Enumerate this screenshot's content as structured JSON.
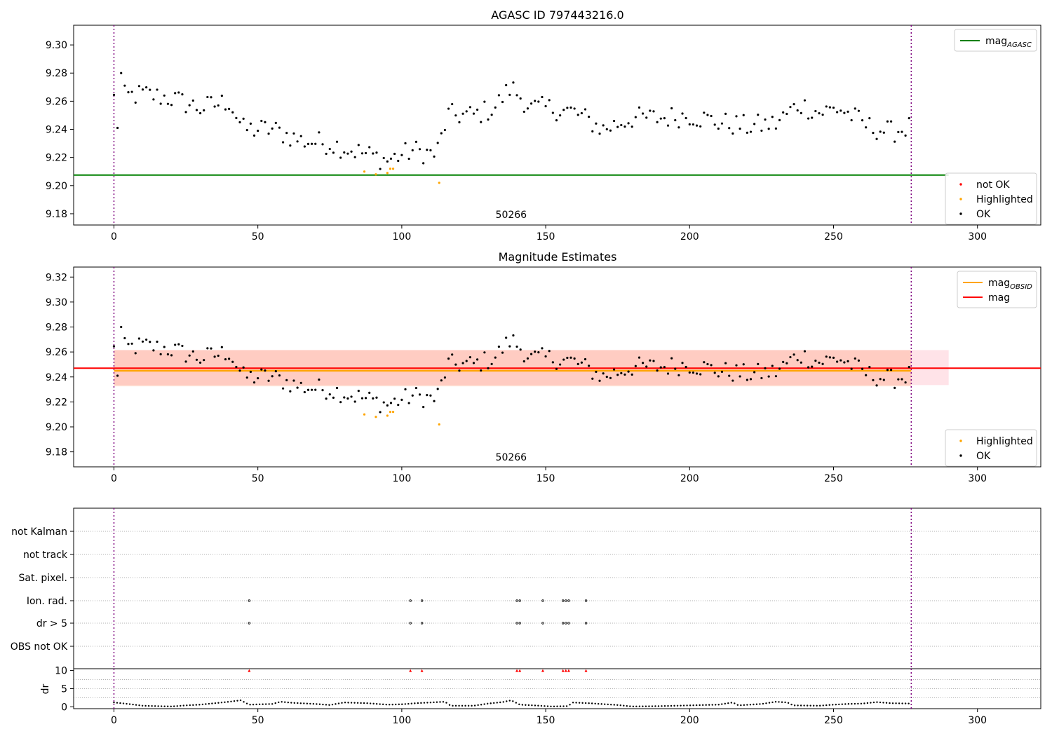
{
  "chart_data": [
    {
      "type": "scatter",
      "title": "AGASC ID 797443216.0",
      "xlim": [
        -14,
        322
      ],
      "ylim": [
        9.172,
        9.314
      ],
      "xticks": [
        0,
        50,
        100,
        150,
        200,
        250,
        300
      ],
      "yticks": [
        9.18,
        9.2,
        9.22,
        9.24,
        9.26,
        9.28,
        9.3
      ],
      "ytick_labels": [
        "9.18",
        "9.20",
        "9.22",
        "9.24",
        "9.26",
        "9.28",
        "9.30"
      ],
      "grid": false,
      "vlines": [
        0,
        277
      ],
      "hline": {
        "name": "mag_AGASC",
        "y": 9.2075,
        "color": "#008000"
      },
      "annotation": {
        "text": "50266",
        "x": 138,
        "y": 9.177
      },
      "legend_top": {
        "placement": "top-right",
        "entries": [
          {
            "label": "mag",
            "sub": "AGASC",
            "color": "#008000",
            "kind": "line"
          }
        ]
      },
      "legend_bottom": {
        "placement": "bottom-right",
        "entries": [
          {
            "label": "not OK",
            "color": "#ff0000",
            "kind": "dot"
          },
          {
            "label": "Highlighted",
            "color": "#ffa500",
            "kind": "dot"
          },
          {
            "label": "OK",
            "color": "#000000",
            "kind": "dot"
          }
        ]
      },
      "series": [
        {
          "name": "not OK",
          "color": "#ff0000",
          "x": [],
          "y": []
        },
        {
          "name": "Highlighted",
          "color": "#ffa500",
          "x": [
            87,
            91,
            95,
            96,
            97,
            113
          ],
          "y": [
            9.21,
            9.208,
            9.209,
            9.212,
            9.212,
            9.202
          ]
        }
      ]
    },
    {
      "type": "scatter",
      "title": "Magnitude Estimates",
      "xlim": [
        -14,
        322
      ],
      "ylim": [
        9.168,
        9.328
      ],
      "xticks": [
        0,
        50,
        100,
        150,
        200,
        250,
        300
      ],
      "yticks": [
        9.18,
        9.2,
        9.22,
        9.24,
        9.26,
        9.28,
        9.3,
        9.32
      ],
      "ytick_labels": [
        "9.18",
        "9.20",
        "9.22",
        "9.24",
        "9.26",
        "9.28",
        "9.30",
        "9.32"
      ],
      "grid": false,
      "vlines": [
        0,
        277
      ],
      "bands": [
        {
          "x": [
            0,
            290
          ],
          "y": [
            9.2335,
            9.2615
          ],
          "color": "#ffc0cb",
          "opacity": 0.45
        },
        {
          "x": [
            0,
            277
          ],
          "y": [
            9.2325,
            9.2615
          ],
          "color": "#ffa07a",
          "opacity": 0.35
        }
      ],
      "lines": [
        {
          "name": "mag_OBSID",
          "x": [
            0,
            277
          ],
          "y": 9.245,
          "color": "#ffa500"
        },
        {
          "name": "mag",
          "x": [
            -14,
            322
          ],
          "y": 9.247,
          "color": "#ff0000"
        }
      ],
      "annotation": {
        "text": "50266",
        "x": 138,
        "y": 9.173
      },
      "legend_top": {
        "placement": "top-right",
        "entries": [
          {
            "label": "mag",
            "sub": "OBSID",
            "color": "#ffa500",
            "kind": "line"
          },
          {
            "label": "mag",
            "sub": "",
            "color": "#ff0000",
            "kind": "line"
          }
        ]
      },
      "legend_bottom": {
        "placement": "bottom-right",
        "entries": [
          {
            "label": "Highlighted",
            "color": "#ffa500",
            "kind": "dot"
          },
          {
            "label": "OK",
            "color": "#000000",
            "kind": "dot"
          }
        ]
      },
      "series": [
        {
          "name": "Highlighted",
          "color": "#ffa500",
          "x": [
            87,
            91,
            95,
            96,
            97,
            113
          ],
          "y": [
            9.21,
            9.208,
            9.209,
            9.212,
            9.212,
            9.202
          ]
        }
      ]
    },
    {
      "type": "scatter",
      "title": "",
      "xlim": [
        -14,
        322
      ],
      "categories": [
        "not Kalman",
        "not track",
        "Sat. pixel.",
        "Ion. rad.",
        "dr > 5",
        "OBS not OK"
      ],
      "grid": true,
      "vlines": [
        0,
        277
      ],
      "flag_x": {
        "Ion. rad.": [
          47,
          103,
          107,
          140,
          141,
          149,
          156,
          157,
          158,
          164
        ],
        "dr > 5": [
          47,
          103,
          107,
          140,
          141,
          149,
          156,
          157,
          158,
          164
        ]
      }
    },
    {
      "type": "scatter",
      "title": "",
      "ylabel": "dr",
      "xlim": [
        -14,
        322
      ],
      "ylim": [
        -0.5,
        10.5
      ],
      "xticks": [
        0,
        50,
        100,
        150,
        200,
        250,
        300
      ],
      "yticks": [
        0,
        5,
        10
      ],
      "ytick_labels": [
        "0",
        "5",
        "10"
      ],
      "grid": true,
      "vlines": [
        0,
        277
      ],
      "clipped": {
        "x": [
          47,
          103,
          107,
          140,
          141,
          149,
          156,
          157,
          158,
          164
        ],
        "y": 10,
        "color": "#ff0000"
      },
      "dr_profile": [
        [
          0,
          1.2
        ],
        [
          5,
          0.8
        ],
        [
          10,
          0.3
        ],
        [
          15,
          0.2
        ],
        [
          20,
          0.1
        ],
        [
          25,
          0.4
        ],
        [
          30,
          0.6
        ],
        [
          35,
          1.0
        ],
        [
          40,
          1.4
        ],
        [
          44,
          1.8
        ],
        [
          47,
          0.6
        ],
        [
          55,
          0.8
        ],
        [
          58,
          1.4
        ],
        [
          62,
          1.1
        ],
        [
          70,
          0.8
        ],
        [
          75,
          0.5
        ],
        [
          80,
          1.2
        ],
        [
          88,
          1.0
        ],
        [
          95,
          0.6
        ],
        [
          100,
          0.7
        ],
        [
          105,
          1.0
        ],
        [
          110,
          1.2
        ],
        [
          115,
          1.4
        ],
        [
          117,
          0.3
        ],
        [
          125,
          0.3
        ],
        [
          130,
          0.9
        ],
        [
          135,
          1.3
        ],
        [
          138,
          1.8
        ],
        [
          141,
          0.6
        ],
        [
          148,
          0.3
        ],
        [
          152,
          0.1
        ],
        [
          158,
          0.2
        ],
        [
          159,
          1.2
        ],
        [
          165,
          1.0
        ],
        [
          175,
          0.5
        ],
        [
          180,
          0.1
        ],
        [
          190,
          0.2
        ],
        [
          200,
          0.4
        ],
        [
          210,
          0.6
        ],
        [
          215,
          1.2
        ],
        [
          217,
          0.4
        ],
        [
          225,
          0.8
        ],
        [
          230,
          1.4
        ],
        [
          234,
          1.2
        ],
        [
          236,
          0.4
        ],
        [
          245,
          0.3
        ],
        [
          250,
          0.6
        ],
        [
          255,
          0.8
        ],
        [
          260,
          0.9
        ],
        [
          265,
          1.3
        ],
        [
          270,
          1.0
        ],
        [
          277,
          0.9
        ]
      ]
    }
  ]
}
